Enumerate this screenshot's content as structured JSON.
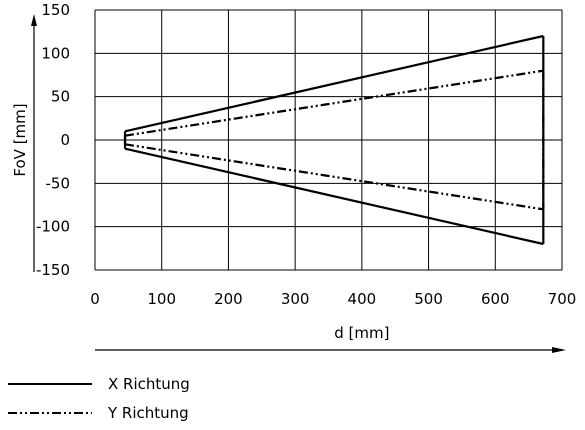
{
  "chart_data": {
    "type": "line",
    "xlabel": "d [mm]",
    "ylabel": "FoV [mm]",
    "xlim": [
      0,
      700
    ],
    "ylim": [
      -150,
      150
    ],
    "x_ticks": [
      "0",
      "100",
      "200",
      "300",
      "400",
      "500",
      "600",
      "700"
    ],
    "y_ticks": [
      "150",
      "100",
      "50",
      "0",
      "-50",
      "-100",
      "-150"
    ],
    "grid": true,
    "legend_position": "bottom-left",
    "series": [
      {
        "name": "X Richtung",
        "line_style": "solid",
        "color": "#000000",
        "upper": {
          "x": [
            45,
            672
          ],
          "y": [
            10,
            120
          ]
        },
        "lower": {
          "x": [
            45,
            672
          ],
          "y": [
            -10,
            -120
          ]
        }
      },
      {
        "name": "Y Richtung",
        "line_style": "dash-dot-dot",
        "color": "#000000",
        "upper": {
          "x": [
            45,
            672
          ],
          "y": [
            5,
            80
          ]
        },
        "lower": {
          "x": [
            45,
            672
          ],
          "y": [
            -5,
            -80
          ]
        }
      }
    ]
  }
}
